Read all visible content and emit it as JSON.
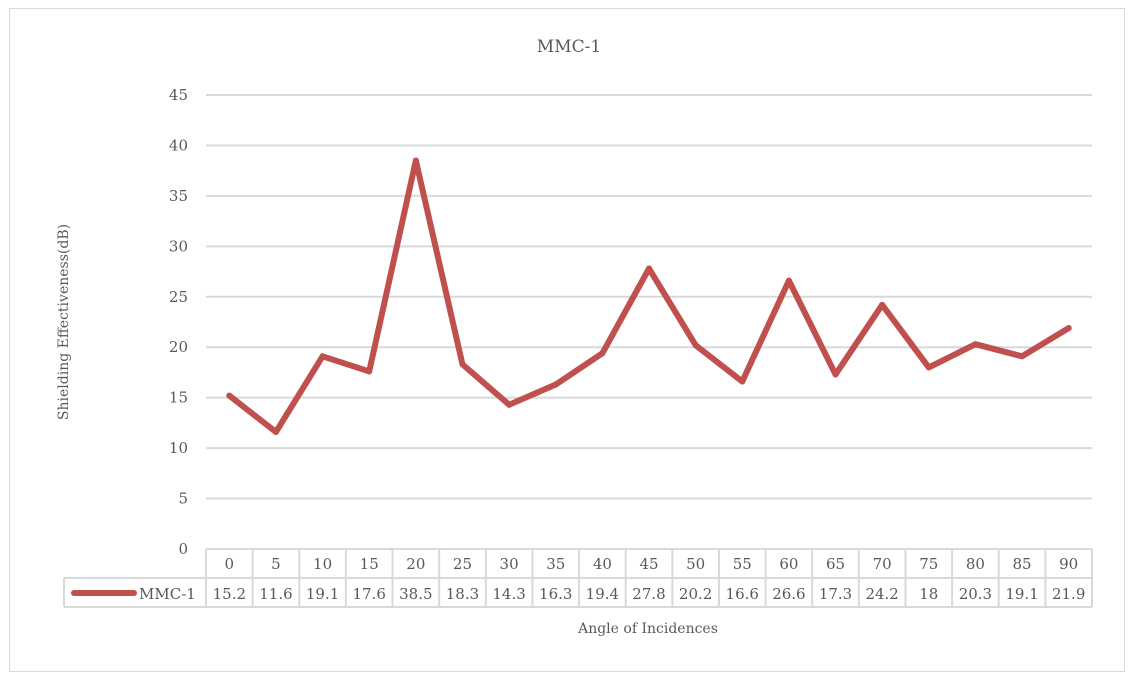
{
  "chart_data": {
    "type": "line",
    "title": "MMC-1",
    "xlabel": "Angle of Incidences",
    "ylabel": "Shielding Effectiveness(dB)",
    "categories": [
      "0",
      "5",
      "10",
      "15",
      "20",
      "25",
      "30",
      "35",
      "40",
      "45",
      "50",
      "55",
      "60",
      "65",
      "70",
      "75",
      "80",
      "85",
      "90"
    ],
    "y_ticks": [
      "0",
      "5",
      "10",
      "15",
      "20",
      "25",
      "30",
      "35",
      "40",
      "45"
    ],
    "ylim": [
      0,
      45
    ],
    "grid": true,
    "legend": "data-table",
    "series": [
      {
        "name": "MMC-1",
        "color": "#c0504d",
        "values": [
          15.2,
          11.6,
          19.1,
          17.6,
          38.5,
          18.3,
          14.3,
          16.3,
          19.4,
          27.8,
          20.2,
          16.6,
          26.6,
          17.3,
          24.2,
          18,
          20.3,
          19.1,
          21.9
        ]
      }
    ]
  }
}
